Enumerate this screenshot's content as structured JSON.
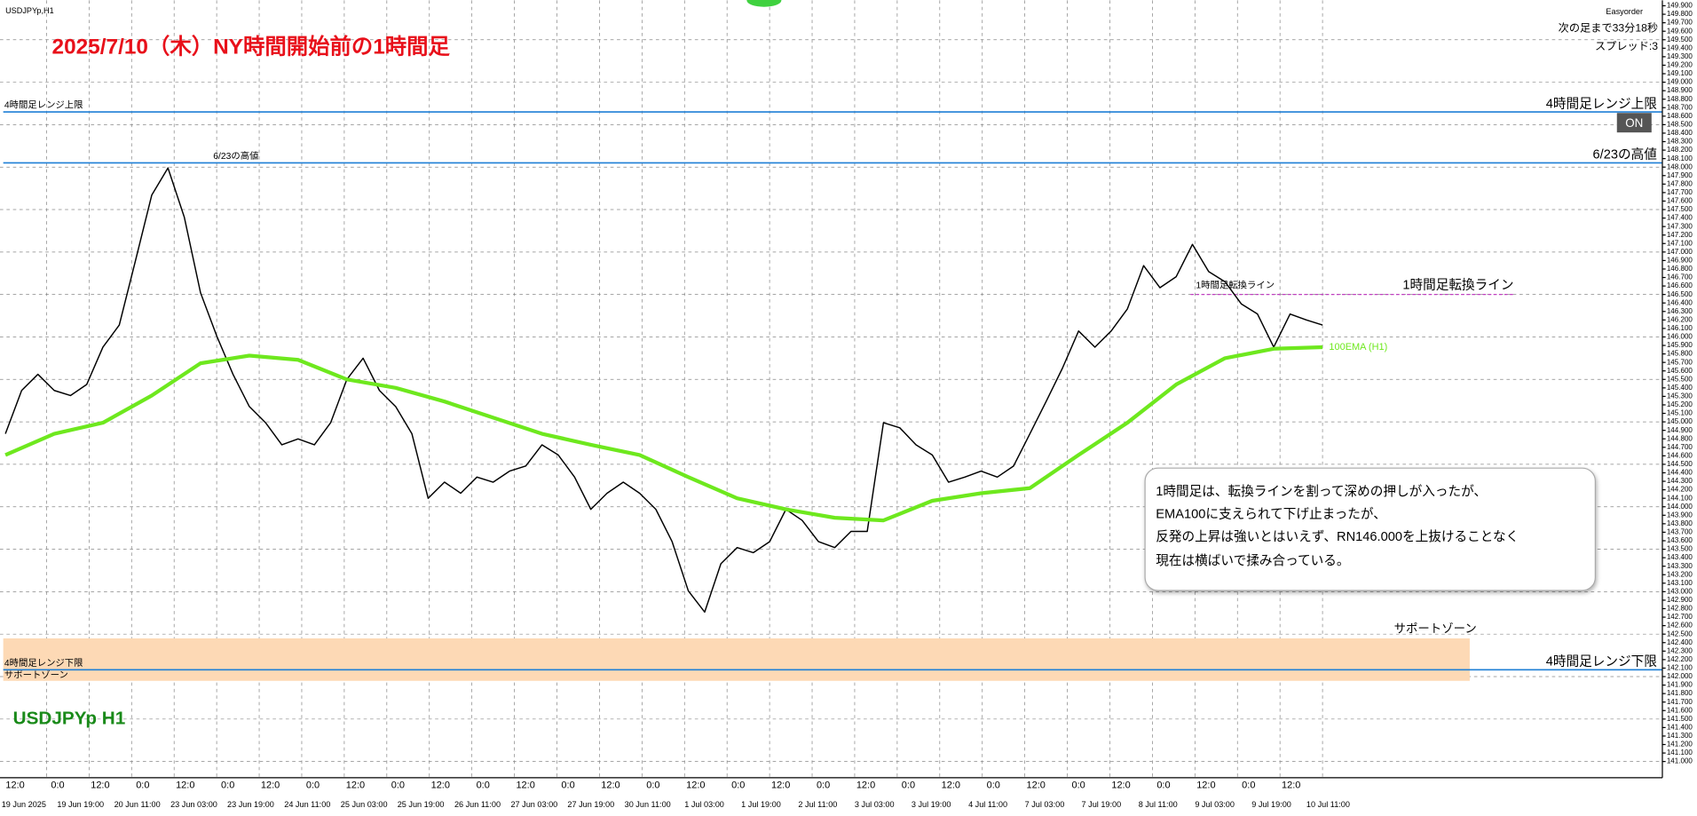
{
  "window_title": "USDJPYp,H1",
  "title": "2025/7/10（木）NY時間開始前の1時間足",
  "symbol_label": "USDJPYp H1",
  "panel": {
    "name": "Easyorder",
    "countdown": "次の足まで33分18秒",
    "spread": "スプレッド:3",
    "button": "ON"
  },
  "note": [
    "1時間足は、転換ラインを割って深めの押しが入ったが、",
    "EMA100に支えられて下げ止まったが、",
    "反発の上昇は強いとはいえず、RN146.000を上抜けることなく",
    "現在は横ばいで揉み合っている。"
  ],
  "levels": [
    {
      "label": "4時間足レンジ上限",
      "value": 148.65,
      "color": "#1e7fd6"
    },
    {
      "label": "6/23の高値",
      "value": 148.05,
      "color": "#1e7fd6"
    },
    {
      "label": "1時間足転換ライン",
      "value": 146.5,
      "color": "#c040c0"
    },
    {
      "label": "4時間足レンジ下限",
      "value": 142.08,
      "color": "#1e7fd6"
    }
  ],
  "zone": {
    "label": "サポートゾーン",
    "range": [
      141.95,
      142.45
    ],
    "color": "#fdd9b5"
  },
  "xaxis": {
    "hours": [
      "12:0",
      "0:0",
      "12:0",
      "0:0",
      "12:0",
      "0:0",
      "12:0",
      "0:0",
      "12:0",
      "0:0",
      "12:0",
      "0:0",
      "12:0",
      "0:0",
      "12:0",
      "0:0",
      "12:0",
      "0:0",
      "12:0",
      "0:0",
      "12:0",
      "0:0",
      "12:0",
      "0:0",
      "12:0",
      "0:0",
      "12:0",
      "0:0",
      "12:0",
      "0:0",
      "12:0"
    ],
    "dates": [
      "19 Jun 2025",
      "19 Jun 19:00",
      "20 Jun 11:00",
      "23 Jun 03:00",
      "23 Jun 19:00",
      "24 Jun 11:00",
      "25 Jun 03:00",
      "25 Jun 19:00",
      "26 Jun 11:00",
      "27 Jun 03:00",
      "27 Jun 19:00",
      "30 Jun 11:00",
      "1 Jul 03:00",
      "1 Jul 19:00",
      "2 Jul 11:00",
      "3 Jul 03:00",
      "3 Jul 19:00",
      "4 Jul 11:00",
      "7 Jul 03:00",
      "7 Jul 19:00",
      "8 Jul 11:00",
      "9 Jul 03:00",
      "9 Jul 19:00",
      "10 Jul 11:00"
    ]
  },
  "chart_data": {
    "type": "line",
    "ylim": [
      141.0,
      149.9
    ],
    "yticks": [
      {
        "value": 149.9,
        "label": "149.900"
      },
      {
        "value": 149.8,
        "label": "149.800"
      },
      {
        "value": 149.7,
        "label": "149.700"
      },
      {
        "value": 149.6,
        "label": "149.600"
      },
      {
        "value": 149.5,
        "label": "149.500"
      },
      {
        "value": 149.4,
        "label": "149.400"
      },
      {
        "value": 149.3,
        "label": "149.300"
      },
      {
        "value": 149.2,
        "label": "149.200"
      },
      {
        "value": 149.1,
        "label": "149.100"
      },
      {
        "value": 149.0,
        "label": "149.000"
      },
      {
        "value": 148.9,
        "label": "148.900"
      },
      {
        "value": 148.8,
        "label": "148.800"
      },
      {
        "value": 148.7,
        "label": "148.700"
      },
      {
        "value": 148.6,
        "label": "148.600"
      },
      {
        "value": 148.5,
        "label": "148.500"
      },
      {
        "value": 148.4,
        "label": "148.400"
      },
      {
        "value": 148.3,
        "label": "148.300"
      },
      {
        "value": 148.2,
        "label": "148.200"
      },
      {
        "value": 148.1,
        "label": "148.100"
      },
      {
        "value": 148.0,
        "label": "148.000"
      },
      {
        "value": 147.9,
        "label": "147.900"
      },
      {
        "value": 147.8,
        "label": "147.800"
      },
      {
        "value": 147.7,
        "label": "147.700"
      },
      {
        "value": 147.6,
        "label": "147.600"
      },
      {
        "value": 147.5,
        "label": "147.500"
      },
      {
        "value": 147.4,
        "label": "147.400"
      },
      {
        "value": 147.3,
        "label": "147.300"
      },
      {
        "value": 147.2,
        "label": "147.200"
      },
      {
        "value": 147.1,
        "label": "147.100"
      },
      {
        "value": 147.0,
        "label": "147.000"
      },
      {
        "value": 146.9,
        "label": "146.900"
      },
      {
        "value": 146.8,
        "label": "146.800"
      },
      {
        "value": 146.7,
        "label": "146.700"
      },
      {
        "value": 146.6,
        "label": "146.600"
      },
      {
        "value": 146.5,
        "label": "146.500"
      },
      {
        "value": 146.4,
        "label": "146.400"
      },
      {
        "value": 146.3,
        "label": "146.300"
      },
      {
        "value": 146.2,
        "label": "146.200"
      },
      {
        "value": 146.1,
        "label": "146.100"
      },
      {
        "value": 146.0,
        "label": "146.000"
      },
      {
        "value": 145.9,
        "label": "145.900"
      },
      {
        "value": 145.8,
        "label": "145.800"
      },
      {
        "value": 145.7,
        "label": "145.700"
      },
      {
        "value": 145.6,
        "label": "145.600"
      },
      {
        "value": 145.5,
        "label": "145.500"
      },
      {
        "value": 145.4,
        "label": "145.400"
      },
      {
        "value": 145.3,
        "label": "145.300"
      },
      {
        "value": 145.2,
        "label": "145.200"
      },
      {
        "value": 145.1,
        "label": "145.100"
      },
      {
        "value": 145.0,
        "label": "145.000"
      },
      {
        "value": 144.9,
        "label": "144.900"
      },
      {
        "value": 144.8,
        "label": "144.800"
      },
      {
        "value": 144.7,
        "label": "144.700"
      },
      {
        "value": 144.6,
        "label": "144.600"
      },
      {
        "value": 144.5,
        "label": "144.500"
      },
      {
        "value": 144.4,
        "label": "144.400"
      },
      {
        "value": 144.3,
        "label": "144.300"
      },
      {
        "value": 144.2,
        "label": "144.200"
      },
      {
        "value": 144.1,
        "label": "144.100"
      },
      {
        "value": 144.0,
        "label": "144.000"
      },
      {
        "value": 143.9,
        "label": "143.900"
      },
      {
        "value": 143.8,
        "label": "143.800"
      },
      {
        "value": 143.7,
        "label": "143.700"
      },
      {
        "value": 143.6,
        "label": "143.600"
      },
      {
        "value": 143.5,
        "label": "143.500"
      },
      {
        "value": 143.4,
        "label": "143.400"
      },
      {
        "value": 143.3,
        "label": "143.300"
      },
      {
        "value": 143.2,
        "label": "143.200"
      },
      {
        "value": 143.1,
        "label": "143.100"
      },
      {
        "value": 143.0,
        "label": "143.000"
      },
      {
        "value": 142.9,
        "label": "142.900"
      },
      {
        "value": 142.8,
        "label": "142.800"
      },
      {
        "value": 142.7,
        "label": "142.700"
      },
      {
        "value": 142.6,
        "label": "142.600"
      },
      {
        "value": 142.5,
        "label": "142.500"
      },
      {
        "value": 142.4,
        "label": "142.400"
      },
      {
        "value": 142.3,
        "label": "142.300"
      },
      {
        "value": 142.2,
        "label": "142.200"
      },
      {
        "value": 142.1,
        "label": "142.100"
      },
      {
        "value": 142.0,
        "label": "142.000"
      },
      {
        "value": 141.9,
        "label": "141.900"
      },
      {
        "value": 141.8,
        "label": "141.800"
      },
      {
        "value": 141.7,
        "label": "141.700"
      },
      {
        "value": 141.6,
        "label": "141.600"
      },
      {
        "value": 141.5,
        "label": "141.500"
      },
      {
        "value": 141.4,
        "label": "141.400"
      },
      {
        "value": 141.3,
        "label": "141.300"
      },
      {
        "value": 141.2,
        "label": "141.200"
      },
      {
        "value": 141.1,
        "label": "141.100"
      },
      {
        "value": 141.0,
        "label": "141.000"
      }
    ],
    "series": [
      {
        "color": "#000000",
        "values": [
          144.86,
          145.37,
          145.56,
          145.37,
          145.31,
          145.44,
          145.88,
          146.14,
          146.9,
          147.67,
          147.99,
          147.41,
          146.52,
          146.01,
          145.56,
          145.18,
          144.99,
          144.73,
          144.8,
          144.73,
          144.99,
          145.5,
          145.75,
          145.37,
          145.18,
          144.86,
          144.1,
          144.29,
          144.16,
          144.35,
          144.29,
          144.42,
          144.48,
          144.73,
          144.61,
          144.35,
          143.97,
          144.16,
          144.29,
          144.16,
          143.97,
          143.59,
          143.01,
          142.76,
          143.33,
          143.52,
          143.46,
          143.59,
          143.97,
          143.84,
          143.59,
          143.52,
          143.71,
          143.71,
          144.99,
          144.93,
          144.73,
          144.61,
          144.29,
          144.35,
          144.42,
          144.35,
          144.48,
          144.86,
          145.24,
          145.63,
          146.07,
          145.88,
          146.07,
          146.33,
          146.84,
          146.58,
          146.71,
          147.09,
          146.77,
          146.65,
          146.39,
          146.27,
          145.88,
          146.27,
          146.2,
          146.14
        ]
      },
      {
        "name": "100EMA (H1)",
        "color": "#6ee81e",
        "values": [
          144.61,
          144.86,
          144.99,
          145.31,
          145.69,
          145.78,
          145.73,
          145.5,
          145.4,
          145.24,
          145.05,
          144.86,
          144.73,
          144.61,
          144.35,
          144.1,
          143.97,
          143.87,
          143.84,
          144.07,
          144.16,
          144.22,
          144.61,
          144.99,
          145.44,
          145.75,
          145.86,
          145.88
        ]
      }
    ]
  }
}
